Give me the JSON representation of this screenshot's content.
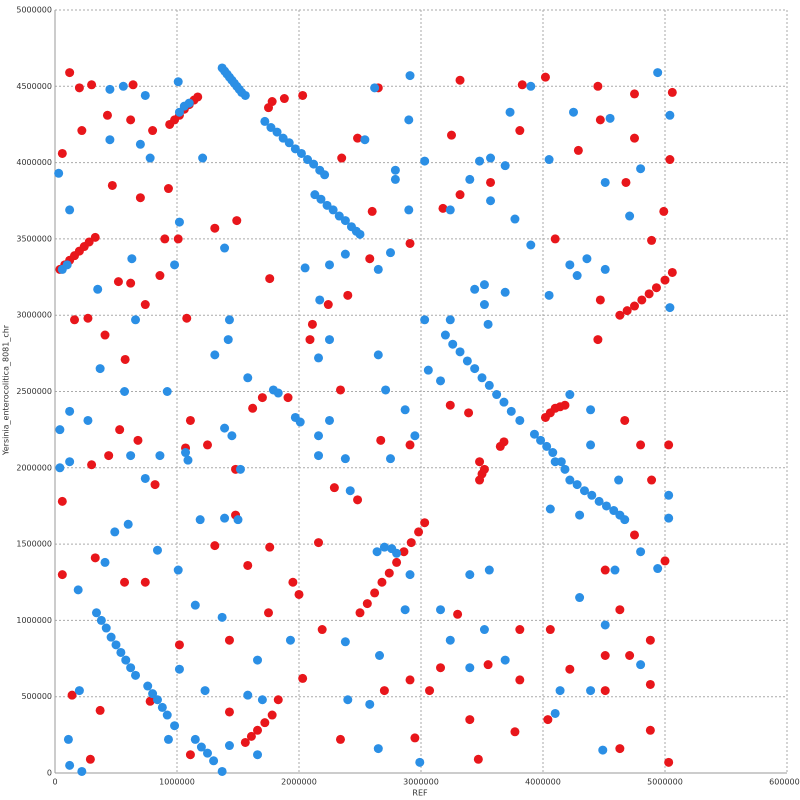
{
  "chart_data": {
    "type": "scatter",
    "xlabel": "REF",
    "ylabel": "Yersinia_enterocolitica_8081_chr",
    "xlim": [
      0,
      6000000
    ],
    "ylim": [
      0,
      5000000
    ],
    "xticks": [
      0,
      1000000,
      2000000,
      3000000,
      4000000,
      5000000,
      6000000
    ],
    "yticks": [
      0,
      500000,
      1000000,
      1500000,
      2000000,
      2500000,
      3000000,
      3500000,
      4000000,
      4500000,
      5000000
    ],
    "grid": true,
    "series": [
      {
        "color": "#e8161b",
        "x": [
          40000,
          80000,
          120000,
          160000,
          200000,
          240000,
          280000,
          330000,
          940000,
          980000,
          1020000,
          1060000,
          1100000,
          1140000,
          1170000,
          4630000,
          4690000,
          4750000,
          4810000,
          4870000,
          4930000,
          5000000,
          5060000,
          4020000,
          4060000,
          4100000,
          4140000,
          4180000,
          2500000,
          2560000,
          2620000,
          2680000,
          2740000,
          2800000,
          2860000,
          2920000,
          2980000,
          3030000,
          1560000,
          1610000,
          1660000,
          1720000,
          1780000,
          3480000,
          3500000,
          3520000,
          3650000,
          3680000,
          120000,
          200000,
          220000,
          300000,
          60000,
          430000,
          640000,
          620000,
          800000,
          930000,
          700000,
          470000,
          900000,
          1010000,
          1310000,
          1490000,
          860000,
          620000,
          520000,
          160000,
          270000,
          410000,
          575000,
          740000,
          1080000,
          440000,
          530000,
          680000,
          820000,
          300000,
          60000,
          60000,
          330000,
          570000,
          740000,
          370000,
          140000,
          290000,
          1070000,
          1110000,
          1250000,
          1480000,
          1480000,
          1310000,
          1580000,
          1760000,
          1700000,
          1910000,
          1620000,
          1760000,
          1780000,
          1880000,
          2030000,
          1750000,
          2350000,
          2480000,
          2650000,
          2600000,
          2910000,
          2580000,
          2400000,
          2110000,
          2240000,
          2340000,
          2090000,
          2290000,
          2480000,
          2160000,
          1950000,
          2000000,
          1750000,
          2190000,
          2030000,
          1830000,
          2910000,
          2670000,
          3240000,
          3390000,
          3480000,
          3570000,
          3320000,
          3250000,
          3180000,
          3320000,
          3830000,
          3810000,
          4020000,
          4290000,
          4470000,
          4450000,
          4750000,
          4750000,
          4680000,
          5060000,
          5040000,
          4990000,
          4890000,
          4100000,
          4470000,
          4450000,
          4670000,
          4800000,
          5030000,
          4890000,
          4750000,
          5000000,
          4510000,
          4630000,
          4710000,
          4880000,
          4880000,
          4510000,
          4220000,
          4510000,
          4040000,
          4630000,
          4880000,
          5030000,
          4060000,
          3810000,
          3810000,
          3550000,
          3300000,
          3160000,
          3400000,
          2910000,
          2700000,
          3070000,
          2950000,
          3470000,
          3770000,
          2340000,
          1110000,
          1020000,
          1430000,
          1430000,
          780000
        ],
        "values": [
          3300000,
          3330000,
          3360000,
          3390000,
          3420000,
          3450000,
          3480000,
          3510000,
          4250000,
          4280000,
          4310000,
          4350000,
          4380000,
          4410000,
          4430000,
          3000000,
          3030000,
          3060000,
          3100000,
          3140000,
          3180000,
          3230000,
          3280000,
          2330000,
          2360000,
          2390000,
          2400000,
          2410000,
          1050000,
          1110000,
          1180000,
          1250000,
          1310000,
          1380000,
          1450000,
          1510000,
          1580000,
          1640000,
          200000,
          240000,
          280000,
          330000,
          380000,
          1920000,
          1960000,
          1990000,
          2140000,
          2170000,
          4590000,
          4490000,
          4210000,
          4510000,
          4060000,
          4310000,
          4510000,
          4280000,
          4210000,
          3830000,
          3770000,
          3850000,
          3500000,
          3500000,
          3570000,
          3620000,
          3260000,
          3210000,
          3220000,
          2970000,
          2980000,
          2870000,
          2710000,
          3070000,
          2980000,
          2080000,
          2250000,
          2180000,
          1890000,
          2020000,
          1780000,
          1300000,
          1410000,
          1250000,
          1250000,
          410000,
          510000,
          90000,
          2130000,
          2310000,
          2150000,
          1990000,
          1690000,
          1490000,
          1360000,
          1480000,
          2460000,
          2460000,
          2390000,
          3240000,
          4400000,
          4420000,
          4440000,
          4360000,
          4030000,
          4160000,
          4490000,
          3680000,
          3470000,
          3370000,
          3130000,
          2940000,
          3070000,
          2510000,
          2840000,
          1870000,
          1790000,
          1510000,
          1250000,
          1170000,
          1050000,
          940000,
          620000,
          480000,
          2150000,
          2180000,
          2410000,
          2360000,
          2040000,
          3870000,
          4540000,
          4180000,
          3700000,
          3790000,
          4510000,
          4210000,
          4560000,
          4080000,
          4280000,
          4500000,
          4450000,
          4160000,
          3870000,
          4460000,
          4020000,
          3680000,
          3490000,
          3500000,
          3100000,
          2840000,
          2310000,
          2150000,
          2150000,
          1920000,
          1560000,
          1390000,
          1330000,
          1070000,
          770000,
          870000,
          580000,
          770000,
          680000,
          540000,
          350000,
          160000,
          280000,
          70000,
          940000,
          940000,
          610000,
          710000,
          1040000,
          690000,
          350000,
          610000,
          540000,
          540000,
          230000,
          90000,
          270000,
          220000,
          120000,
          840000,
          870000,
          400000,
          470000
        ]
      },
      {
        "color": "#2b8fe5",
        "x": [
          1370000,
          1390000,
          1410000,
          1430000,
          1450000,
          1470000,
          1490000,
          1510000,
          1530000,
          1560000,
          1720000,
          1770000,
          1820000,
          1870000,
          1920000,
          1970000,
          2020000,
          2070000,
          2120000,
          2170000,
          2210000,
          2130000,
          2180000,
          2230000,
          2280000,
          2330000,
          2380000,
          2430000,
          2470000,
          2500000,
          3200000,
          3260000,
          3320000,
          3380000,
          3440000,
          3500000,
          3560000,
          3620000,
          3680000,
          3740000,
          3810000,
          3930000,
          3980000,
          4030000,
          4080000,
          4150000,
          4220000,
          4280000,
          4340000,
          4400000,
          4460000,
          4520000,
          4580000,
          4630000,
          4670000,
          340000,
          380000,
          420000,
          460000,
          500000,
          540000,
          580000,
          620000,
          660000,
          760000,
          800000,
          840000,
          880000,
          920000,
          980000,
          1150000,
          1200000,
          1250000,
          1300000,
          1370000,
          2640000,
          2700000,
          2760000,
          2800000,
          1020000,
          1060000,
          1100000,
          60000,
          100000,
          1790000,
          1830000,
          30000,
          120000,
          450000,
          560000,
          740000,
          450000,
          700000,
          780000,
          1010000,
          1210000,
          1390000,
          1020000,
          630000,
          350000,
          980000,
          660000,
          370000,
          570000,
          920000,
          1430000,
          1310000,
          1420000,
          1580000,
          40000,
          120000,
          270000,
          40000,
          120000,
          620000,
          860000,
          740000,
          600000,
          490000,
          840000,
          410000,
          1010000,
          190000,
          110000,
          120000,
          220000,
          200000,
          1020000,
          930000,
          1190000,
          1390000,
          1500000,
          1070000,
          1090000,
          1450000,
          1390000,
          1520000,
          1970000,
          2010000,
          2160000,
          2250000,
          2160000,
          2380000,
          2420000,
          2750000,
          2870000,
          2950000,
          2710000,
          2650000,
          2250000,
          2160000,
          2170000,
          2050000,
          2250000,
          2380000,
          2650000,
          2750000,
          2790000,
          2540000,
          2620000,
          2910000,
          2900000,
          3030000,
          2900000,
          2790000,
          3570000,
          3480000,
          3400000,
          3240000,
          3570000,
          3770000,
          3900000,
          3690000,
          3730000,
          4050000,
          3900000,
          4250000,
          4510000,
          4710000,
          4220000,
          4280000,
          4360000,
          4510000,
          4050000,
          5040000,
          4940000,
          5040000,
          4550000,
          4800000,
          3440000,
          3520000,
          3690000,
          3520000,
          3550000,
          3240000,
          3030000,
          3060000,
          3160000,
          4220000,
          4390000,
          4390000,
          4100000,
          4180000,
          4060000,
          4300000,
          4620000,
          5030000,
          5030000,
          4800000,
          4940000,
          4590000,
          4300000,
          4510000,
          4800000,
          4390000,
          4140000,
          4100000,
          4490000,
          3690000,
          3400000,
          3520000,
          3560000,
          3400000,
          3160000,
          3240000,
          2910000,
          2870000,
          2660000,
          2580000,
          2650000,
          2990000,
          2380000,
          2400000,
          1930000,
          1660000,
          1580000,
          1430000,
          1700000,
          1660000,
          1230000,
          1370000,
          1150000
        ],
        "values": [
          4620000,
          4600000,
          4580000,
          4560000,
          4540000,
          4520000,
          4500000,
          4480000,
          4460000,
          4440000,
          4270000,
          4230000,
          4200000,
          4160000,
          4130000,
          4090000,
          4060000,
          4020000,
          3990000,
          3950000,
          3920000,
          3790000,
          3760000,
          3720000,
          3690000,
          3650000,
          3620000,
          3580000,
          3550000,
          3530000,
          2870000,
          2810000,
          2760000,
          2700000,
          2650000,
          2590000,
          2540000,
          2480000,
          2430000,
          2370000,
          2310000,
          2220000,
          2180000,
          2140000,
          2100000,
          2040000,
          1920000,
          1890000,
          1850000,
          1820000,
          1780000,
          1750000,
          1720000,
          1690000,
          1660000,
          1050000,
          1000000,
          950000,
          890000,
          840000,
          790000,
          740000,
          690000,
          640000,
          570000,
          520000,
          480000,
          430000,
          380000,
          310000,
          220000,
          170000,
          130000,
          80000,
          10000,
          1450000,
          1480000,
          1470000,
          1440000,
          4330000,
          4370000,
          4390000,
          3300000,
          3330000,
          2510000,
          2490000,
          3930000,
          3690000,
          4480000,
          4500000,
          4440000,
          4150000,
          4120000,
          4030000,
          4530000,
          4030000,
          3440000,
          3610000,
          3370000,
          3170000,
          3330000,
          2970000,
          2650000,
          2500000,
          2500000,
          2970000,
          2740000,
          2840000,
          2590000,
          2250000,
          2370000,
          2310000,
          2000000,
          2040000,
          2080000,
          2080000,
          1930000,
          1630000,
          1580000,
          1460000,
          1380000,
          1330000,
          1200000,
          220000,
          50000,
          10000,
          540000,
          680000,
          220000,
          1660000,
          1670000,
          1660000,
          2100000,
          2050000,
          2210000,
          2260000,
          1990000,
          2330000,
          2300000,
          2210000,
          2310000,
          2080000,
          2060000,
          1850000,
          2060000,
          2380000,
          2210000,
          2510000,
          2740000,
          2840000,
          2720000,
          3100000,
          3310000,
          3330000,
          3400000,
          3300000,
          3410000,
          3950000,
          4150000,
          4490000,
          4570000,
          4280000,
          4010000,
          3690000,
          3890000,
          4030000,
          4010000,
          3890000,
          3690000,
          3750000,
          3630000,
          3460000,
          3980000,
          4330000,
          4020000,
          4500000,
          4330000,
          3870000,
          3650000,
          3330000,
          3260000,
          3370000,
          3300000,
          3130000,
          3050000,
          4590000,
          4310000,
          4290000,
          3960000,
          3170000,
          3200000,
          3150000,
          3070000,
          2940000,
          2970000,
          2970000,
          2640000,
          2570000,
          2480000,
          2380000,
          2150000,
          2040000,
          1990000,
          1730000,
          1690000,
          1920000,
          1820000,
          1670000,
          1450000,
          1340000,
          1330000,
          1150000,
          970000,
          710000,
          540000,
          540000,
          390000,
          150000,
          740000,
          690000,
          940000,
          1330000,
          1300000,
          1070000,
          870000,
          1300000,
          1070000,
          770000,
          450000,
          160000,
          70000,
          860000,
          480000,
          870000,
          740000,
          510000,
          180000,
          480000,
          120000,
          540000,
          1020000,
          1100000
        ]
      }
    ]
  }
}
